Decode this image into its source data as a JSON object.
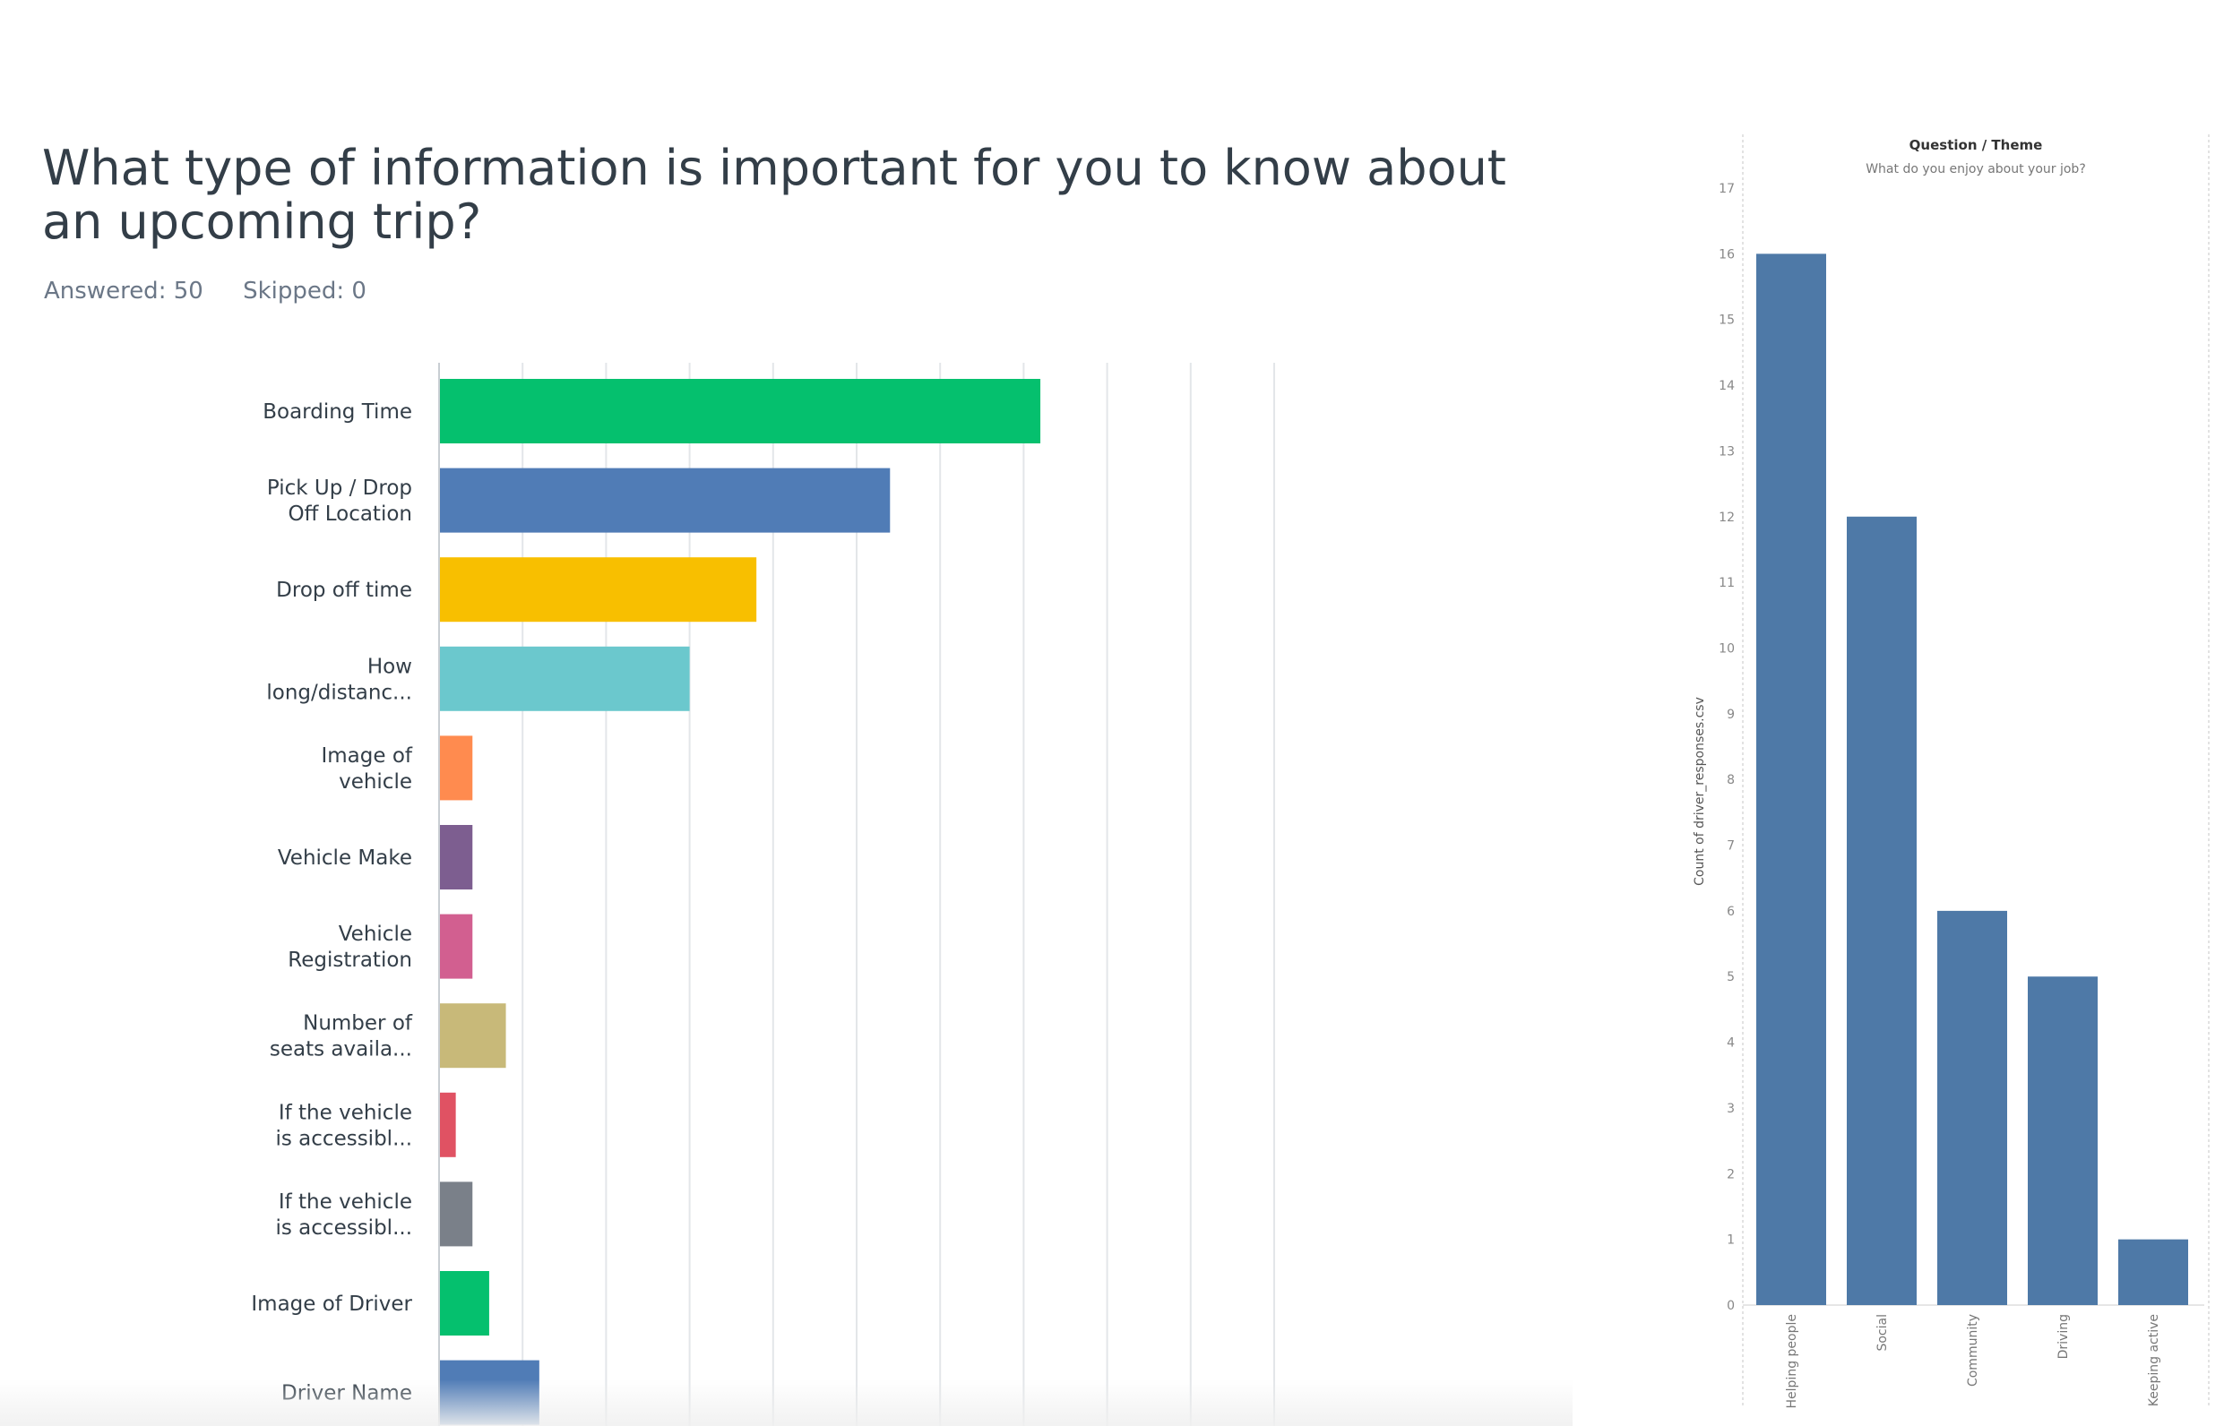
{
  "survey": {
    "question_title": "What type of information is important for you to know about an upcoming trip?",
    "answered_label": "Answered: 50",
    "skipped_label": "Skipped: 0"
  },
  "tableau": {
    "header": "Question / Theme",
    "subheader": "What do you enjoy about your job?",
    "y_axis_label": "Count of driver_responses.csv"
  },
  "chart_data": [
    {
      "type": "bar",
      "orientation": "horizontal",
      "title": "What type of information is important for you to know about an upcoming trip?",
      "categories": [
        "Boarding Time",
        "Pick Up / Drop Off Location",
        "Drop off time",
        "How long/distanc...",
        "Image of vehicle",
        "Vehicle Make",
        "Vehicle Registration",
        "Number of seats availa...",
        "If the vehicle is accessibl...",
        "If the vehicle is accessibl...",
        "Image of Driver",
        "Driver Name"
      ],
      "display_lines": [
        [
          "Boarding Time"
        ],
        [
          "Pick Up / Drop",
          "Off Location"
        ],
        [
          "Drop off time"
        ],
        [
          "How",
          "long/distanc..."
        ],
        [
          "Image of",
          "vehicle"
        ],
        [
          "Vehicle Make"
        ],
        [
          "Vehicle",
          "Registration"
        ],
        [
          "Number of",
          "seats availa..."
        ],
        [
          "If the vehicle",
          "is accessibl..."
        ],
        [
          "If the vehicle",
          "is accessibl..."
        ],
        [
          "Image of Driver"
        ],
        [
          "Driver Name"
        ]
      ],
      "values": [
        72,
        54,
        38,
        30,
        4,
        4,
        4,
        8,
        2,
        4,
        6,
        12
      ],
      "unit": "%",
      "xlim": [
        0,
        100
      ],
      "grid": true,
      "colors": [
        "#05c06e",
        "#507cb6",
        "#f8bf00",
        "#6bc8cd",
        "#ff8b4f",
        "#7d5e90",
        "#d25f90",
        "#c8b979",
        "#e05263",
        "#7a8089",
        "#05c06e",
        "#507cb6"
      ]
    },
    {
      "type": "bar",
      "title": "Question / Theme",
      "subtitle": "What do you enjoy about your job?",
      "ylabel": "Count of driver_responses.csv",
      "categories": [
        "Helping people",
        "Social",
        "Community",
        "Driving",
        "Keeping active"
      ],
      "values": [
        16,
        12,
        6,
        5,
        1
      ],
      "ylim": [
        0,
        17
      ],
      "yticks": [
        0,
        1,
        2,
        3,
        4,
        5,
        6,
        7,
        8,
        9,
        10,
        11,
        12,
        13,
        14,
        15,
        16,
        17
      ],
      "color": "#4e79a7",
      "grid": false
    }
  ]
}
